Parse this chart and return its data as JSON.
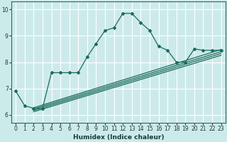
{
  "xlabel": "Humidex (Indice chaleur)",
  "ylabel": "",
  "xlim": [
    -0.5,
    23.5
  ],
  "ylim": [
    5.7,
    10.3
  ],
  "background_color": "#cdeaea",
  "grid_color": "#ffffff",
  "line_color": "#1a6b5a",
  "xticks": [
    0,
    1,
    2,
    3,
    4,
    5,
    6,
    7,
    8,
    9,
    10,
    11,
    12,
    13,
    14,
    15,
    16,
    17,
    18,
    19,
    20,
    21,
    22,
    23
  ],
  "yticks": [
    6,
    7,
    8,
    9,
    10
  ],
  "main_x": [
    0,
    1,
    2,
    3,
    4,
    5,
    6,
    7,
    8,
    9,
    10,
    11,
    12,
    13,
    14,
    15,
    16,
    17,
    18,
    19,
    20,
    21,
    22,
    23
  ],
  "main_y": [
    6.9,
    6.35,
    6.25,
    6.25,
    7.6,
    7.6,
    7.6,
    7.6,
    8.2,
    8.7,
    9.2,
    9.3,
    9.85,
    9.85,
    9.5,
    9.2,
    8.6,
    8.45,
    8.0,
    8.0,
    8.5,
    8.45,
    8.45,
    8.45
  ],
  "straight_lines": [
    {
      "x": [
        2,
        23
      ],
      "y": [
        6.27,
        8.48
      ]
    },
    {
      "x": [
        2,
        23
      ],
      "y": [
        6.22,
        8.4
      ]
    },
    {
      "x": [
        2,
        23
      ],
      "y": [
        6.17,
        8.33
      ]
    },
    {
      "x": [
        2,
        23
      ],
      "y": [
        6.12,
        8.26
      ]
    }
  ]
}
